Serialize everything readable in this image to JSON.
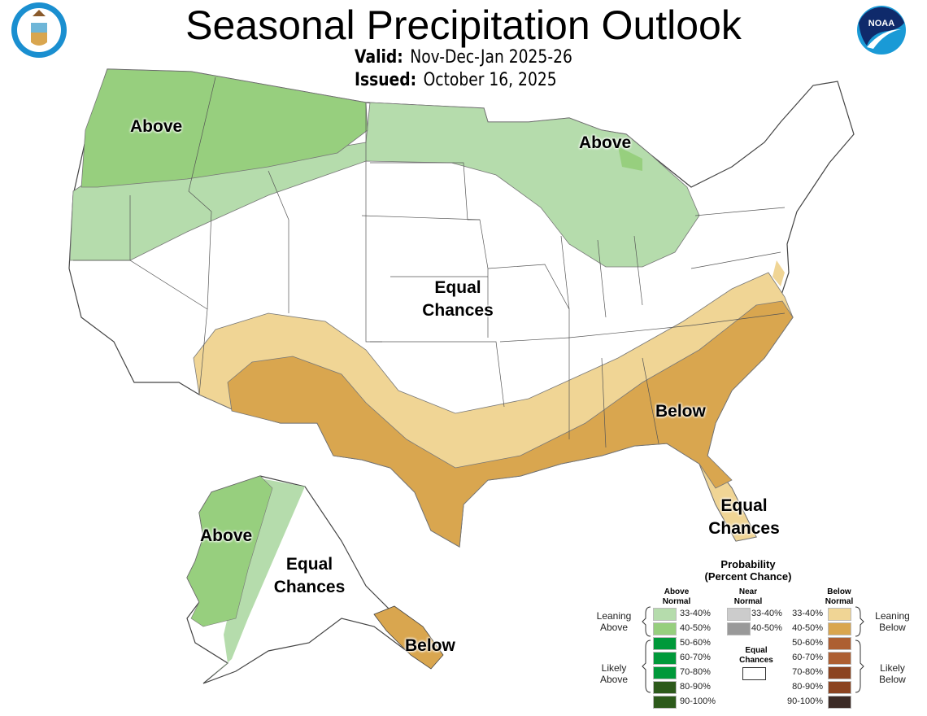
{
  "header": {
    "title": "Seasonal Precipitation Outlook",
    "valid_label": "Valid:",
    "valid_value": "Nov-Dec-Jan 2025-26",
    "issued_label": "Issued:",
    "issued_value": "October 16, 2025",
    "logo_left": "Department of Commerce seal",
    "logo_right": "NOAA"
  },
  "map_labels": {
    "nw_above": "Above",
    "ne_above": "Above",
    "equal_central_1": "Equal",
    "equal_central_2": "Chances",
    "below_se": "Below",
    "equal_fl_1": "Equal",
    "equal_fl_2": "Chances",
    "ak_above": "Above",
    "ak_equal_1": "Equal",
    "ak_equal_2": "Chances",
    "ak_below": "Below"
  },
  "colors": {
    "above_33_40": "#b5dcac",
    "above_40_50": "#97cf7e",
    "below_33_40": "#f0d595",
    "below_40_50": "#d9a64f",
    "near_33_40": "#cccccc",
    "near_40_50": "#999999",
    "equal": "#ffffff"
  },
  "legend": {
    "title_1": "Probability",
    "title_2": "(Percent Chance)",
    "above_head_1": "Above",
    "above_head_2": "Normal",
    "near_head_1": "Near",
    "near_head_2": "Normal",
    "below_head_1": "Below",
    "below_head_2": "Normal",
    "leaning_above_1": "Leaning",
    "leaning_above_2": "Above",
    "likely_above_1": "Likely",
    "likely_above_2": "Above",
    "leaning_below_1": "Leaning",
    "leaning_below_2": "Below",
    "likely_below_1": "Likely",
    "likely_below_2": "Below",
    "equal_1": "Equal",
    "equal_2": "Chances",
    "above": [
      {
        "label": "33-40%",
        "color": "#b5dcac"
      },
      {
        "label": "40-50%",
        "color": "#97cf7e"
      },
      {
        "label": "50-60%",
        "color": "#00993a"
      },
      {
        "label": "60-70%",
        "color": "#00993a"
      },
      {
        "label": "70-80%",
        "color": "#00993a"
      },
      {
        "label": "80-90%",
        "color": "#2d5a1b"
      },
      {
        "label": "90-100%",
        "color": "#2d5a1b"
      }
    ],
    "near": [
      {
        "label": "33-40%",
        "color": "#cccccc"
      },
      {
        "label": "40-50%",
        "color": "#999999"
      }
    ],
    "below": [
      {
        "label": "33-40%",
        "color": "#f0d595"
      },
      {
        "label": "40-50%",
        "color": "#d9a64f"
      },
      {
        "label": "50-60%",
        "color": "#ad5f32"
      },
      {
        "label": "60-70%",
        "color": "#ad5f32"
      },
      {
        "label": "70-80%",
        "color": "#8b4320"
      },
      {
        "label": "80-90%",
        "color": "#8b4320"
      },
      {
        "label": "90-100%",
        "color": "#3b2a25"
      }
    ]
  }
}
